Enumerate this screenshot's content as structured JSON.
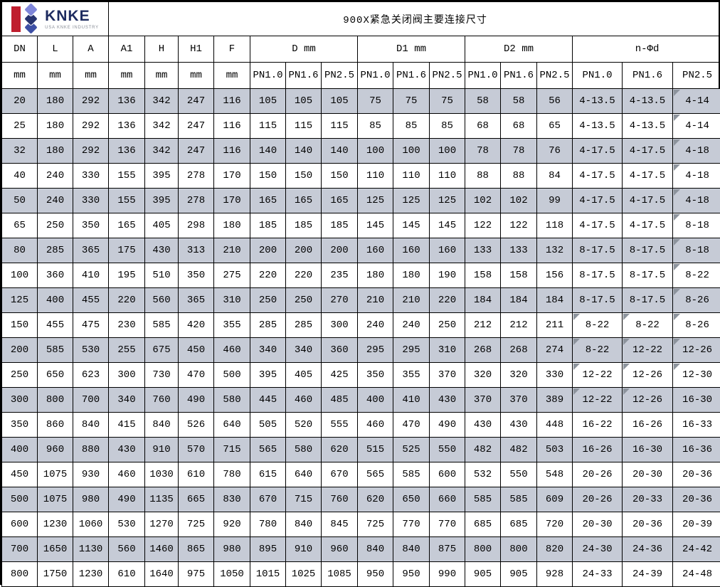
{
  "title": "900X紧急关闭阀主要连接尺寸",
  "logo": {
    "name": "KNKE",
    "subtitle": "USA KNKE INDUSTRY",
    "red_bar_color": "#bf1e2e",
    "diamond_colors": [
      "#7f86d9",
      "#27336f",
      "#3d4fa5"
    ],
    "name_color": "#1d2b5f"
  },
  "colors": {
    "row_shade": "#c6cbd6",
    "row_plain": "#ffffff",
    "border": "#000000",
    "corner_marker": "#8d949d"
  },
  "table": {
    "single_cols": [
      "DN",
      "L",
      "A",
      "A1",
      "H",
      "H1",
      "F"
    ],
    "unit": "mm",
    "groups": [
      "D mm",
      "D1 mm",
      "D2 mm",
      "n-Φd"
    ],
    "pn_labels": [
      "PN1.0",
      "PN1.6",
      "PN2.5"
    ],
    "rows": [
      {
        "cells": [
          20,
          180,
          292,
          136,
          342,
          247,
          116,
          105,
          105,
          105,
          75,
          75,
          75,
          58,
          58,
          56,
          "4-13.5",
          "4-13.5",
          "4-14"
        ],
        "marks": [
          18
        ]
      },
      {
        "cells": [
          25,
          180,
          292,
          136,
          342,
          247,
          116,
          115,
          115,
          115,
          85,
          85,
          85,
          68,
          68,
          65,
          "4-13.5",
          "4-13.5",
          "4-14"
        ],
        "marks": [
          18
        ]
      },
      {
        "cells": [
          32,
          180,
          292,
          136,
          342,
          247,
          116,
          140,
          140,
          140,
          100,
          100,
          100,
          78,
          78,
          76,
          "4-17.5",
          "4-17.5",
          "4-18"
        ],
        "marks": [
          18
        ]
      },
      {
        "cells": [
          40,
          240,
          330,
          155,
          395,
          278,
          170,
          150,
          150,
          150,
          110,
          110,
          110,
          88,
          88,
          84,
          "4-17.5",
          "4-17.5",
          "4-18"
        ],
        "marks": [
          18
        ]
      },
      {
        "cells": [
          50,
          240,
          330,
          155,
          395,
          278,
          170,
          165,
          165,
          165,
          125,
          125,
          125,
          102,
          102,
          99,
          "4-17.5",
          "4-17.5",
          "4-18"
        ],
        "marks": [
          18
        ]
      },
      {
        "cells": [
          65,
          250,
          350,
          165,
          405,
          298,
          180,
          185,
          185,
          185,
          145,
          145,
          145,
          122,
          122,
          118,
          "4-17.5",
          "4-17.5",
          "8-18"
        ],
        "marks": [
          18
        ]
      },
      {
        "cells": [
          80,
          285,
          365,
          175,
          430,
          313,
          210,
          200,
          200,
          200,
          160,
          160,
          160,
          133,
          133,
          132,
          "8-17.5",
          "8-17.5",
          "8-18"
        ],
        "marks": [
          18
        ]
      },
      {
        "cells": [
          100,
          360,
          410,
          195,
          510,
          350,
          275,
          220,
          220,
          235,
          180,
          180,
          190,
          158,
          158,
          156,
          "8-17.5",
          "8-17.5",
          "8-22"
        ],
        "marks": [
          18
        ]
      },
      {
        "cells": [
          125,
          400,
          455,
          220,
          560,
          365,
          310,
          250,
          250,
          270,
          210,
          210,
          220,
          184,
          184,
          184,
          "8-17.5",
          "8-17.5",
          "8-26"
        ],
        "marks": [
          18
        ]
      },
      {
        "cells": [
          150,
          455,
          475,
          230,
          585,
          420,
          355,
          285,
          285,
          300,
          240,
          240,
          250,
          212,
          212,
          211,
          "8-22",
          "8-22",
          "8-26"
        ],
        "marks": [
          16,
          17,
          18
        ]
      },
      {
        "cells": [
          200,
          585,
          530,
          255,
          675,
          450,
          460,
          340,
          340,
          360,
          295,
          295,
          310,
          268,
          268,
          274,
          "8-22",
          "12-22",
          "12-26"
        ],
        "marks": [
          16,
          17,
          18
        ]
      },
      {
        "cells": [
          250,
          650,
          623,
          300,
          730,
          470,
          500,
          395,
          405,
          425,
          350,
          355,
          370,
          320,
          320,
          330,
          "12-22",
          "12-26",
          "12-30"
        ],
        "marks": [
          16,
          17,
          18
        ]
      },
      {
        "cells": [
          300,
          800,
          700,
          340,
          760,
          490,
          580,
          445,
          460,
          485,
          400,
          410,
          430,
          370,
          370,
          389,
          "12-22",
          "12-26",
          "16-30"
        ],
        "marks": [
          16,
          17
        ]
      },
      {
        "cells": [
          350,
          860,
          840,
          415,
          840,
          526,
          640,
          505,
          520,
          555,
          460,
          470,
          490,
          430,
          430,
          448,
          "16-22",
          "16-26",
          "16-33"
        ],
        "marks": []
      },
      {
        "cells": [
          400,
          960,
          880,
          430,
          910,
          570,
          715,
          565,
          580,
          620,
          515,
          525,
          550,
          482,
          482,
          503,
          "16-26",
          "16-30",
          "16-36"
        ],
        "marks": []
      },
      {
        "cells": [
          450,
          1075,
          930,
          460,
          1030,
          610,
          780,
          615,
          640,
          670,
          565,
          585,
          600,
          532,
          550,
          548,
          "20-26",
          "20-30",
          "20-36"
        ],
        "marks": []
      },
      {
        "cells": [
          500,
          1075,
          980,
          490,
          1135,
          665,
          830,
          670,
          715,
          760,
          620,
          650,
          660,
          585,
          585,
          609,
          "20-26",
          "20-33",
          "20-36"
        ],
        "marks": []
      },
      {
        "cells": [
          600,
          1230,
          1060,
          530,
          1270,
          725,
          920,
          780,
          840,
          845,
          725,
          770,
          770,
          685,
          685,
          720,
          "20-30",
          "20-36",
          "20-39"
        ],
        "marks": []
      },
      {
        "cells": [
          700,
          1650,
          1130,
          560,
          1460,
          865,
          980,
          895,
          910,
          960,
          840,
          840,
          875,
          800,
          800,
          820,
          "24-30",
          "24-36",
          "24-42"
        ],
        "marks": []
      },
      {
        "cells": [
          800,
          1750,
          1230,
          610,
          1640,
          975,
          1050,
          1015,
          1025,
          1085,
          950,
          950,
          990,
          905,
          905,
          928,
          "24-33",
          "24-39",
          "24-48"
        ],
        "marks": []
      }
    ]
  }
}
